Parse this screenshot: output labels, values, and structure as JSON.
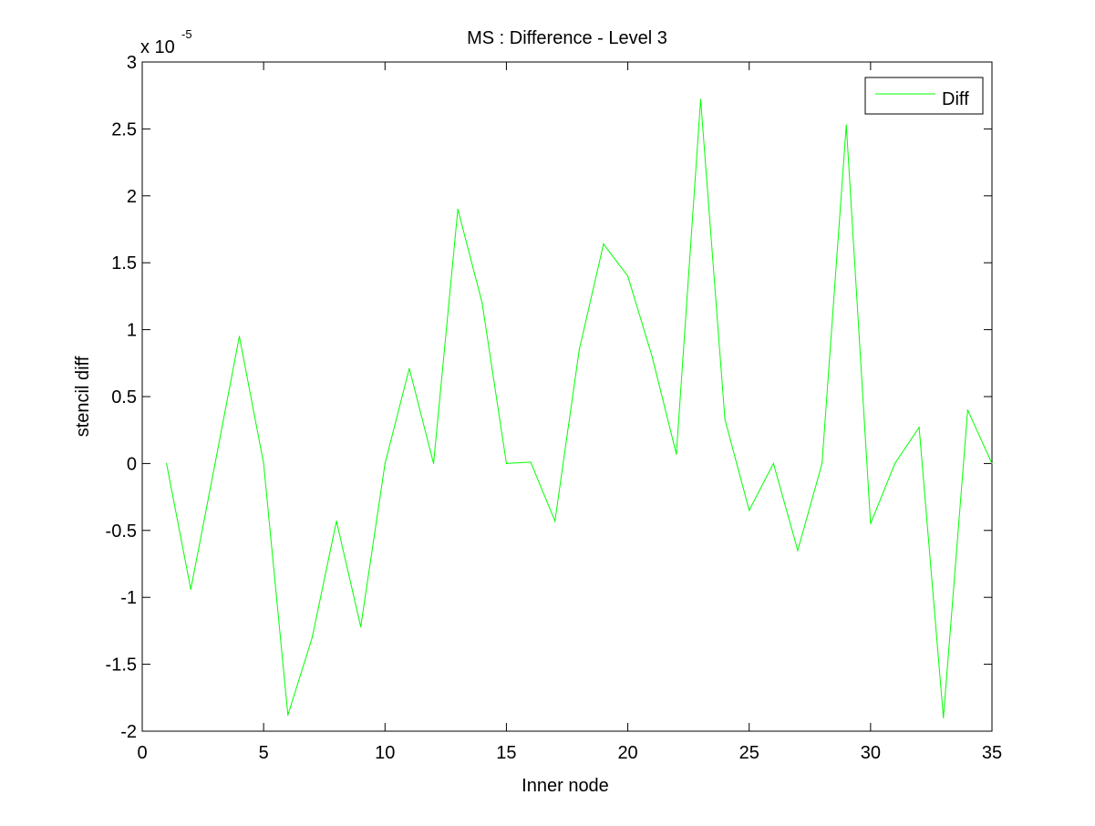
{
  "chart_data": {
    "type": "line",
    "title": "MS : Difference - Level 3",
    "xlabel": "Inner node",
    "ylabel": "stencil diff",
    "xlim": [
      0,
      35
    ],
    "ylim": [
      -2,
      3
    ],
    "y_exponent_label": "x 10",
    "y_exponent_power": "-5",
    "xticks": [
      0,
      5,
      10,
      15,
      20,
      25,
      30,
      35
    ],
    "xtick_labels": [
      "0",
      "5",
      "10",
      "15",
      "20",
      "25",
      "30",
      "35"
    ],
    "yticks": [
      -2,
      -1.5,
      -1,
      -0.5,
      0,
      0.5,
      1,
      1.5,
      2,
      2.5,
      3
    ],
    "ytick_labels": [
      "-2",
      "-1.5",
      "-1",
      "-0.5",
      "0",
      "0.5",
      "1",
      "1.5",
      "2",
      "2.5",
      "3"
    ],
    "grid": false,
    "legend_position": "top-right",
    "series": [
      {
        "name": "Diff",
        "color": "#00ff00",
        "x": [
          1,
          2,
          3,
          4,
          5,
          6,
          7,
          8,
          9,
          10,
          11,
          12,
          13,
          14,
          15,
          16,
          17,
          18,
          19,
          20,
          21,
          22,
          23,
          24,
          25,
          26,
          27,
          28,
          29,
          30,
          31,
          32,
          33,
          34,
          35
        ],
        "values": [
          0.0,
          -0.94,
          0.0,
          0.95,
          0.0,
          -1.88,
          -1.3,
          -0.43,
          -1.22,
          0.0,
          0.71,
          0.0,
          1.9,
          1.2,
          0.0,
          0.01,
          -0.43,
          0.85,
          1.64,
          1.4,
          0.8,
          0.07,
          2.72,
          0.33,
          -0.35,
          0.0,
          -0.65,
          0.0,
          2.53,
          -0.45,
          0.0,
          0.27,
          -1.9,
          0.4,
          0.0
        ]
      }
    ]
  }
}
